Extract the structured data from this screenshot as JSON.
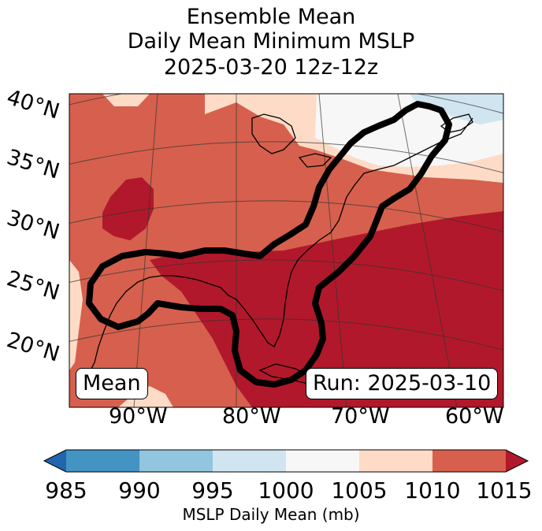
{
  "title": {
    "line1": "Ensemble Mean",
    "line2": "Daily Mean Minimum MSLP",
    "line3": "2025-03-20 12z-12z"
  },
  "map": {
    "lat_labels": [
      "40°N",
      "35°N",
      "30°N",
      "25°N",
      "20°N"
    ],
    "lon_labels": [
      "90°W",
      "80°W",
      "70°W",
      "60°W"
    ],
    "left_box": "Mean",
    "right_box": "Run: 2025-03-10"
  },
  "colorbar": {
    "ticks": [
      "985",
      "990",
      "995",
      "1000",
      "1005",
      "1010",
      "1015"
    ],
    "label": "MSLP Daily Mean (mb)",
    "colors": {
      "under": "#2166ac",
      "c985_990": "#4393c3",
      "c990_995": "#92c5de",
      "c995_1000": "#d1e5f0",
      "c1000_1005": "#f7f7f7",
      "c1005_1010": "#fddbc7",
      "c1010_1015": "#d6604d",
      "over": "#b2182b"
    }
  }
}
